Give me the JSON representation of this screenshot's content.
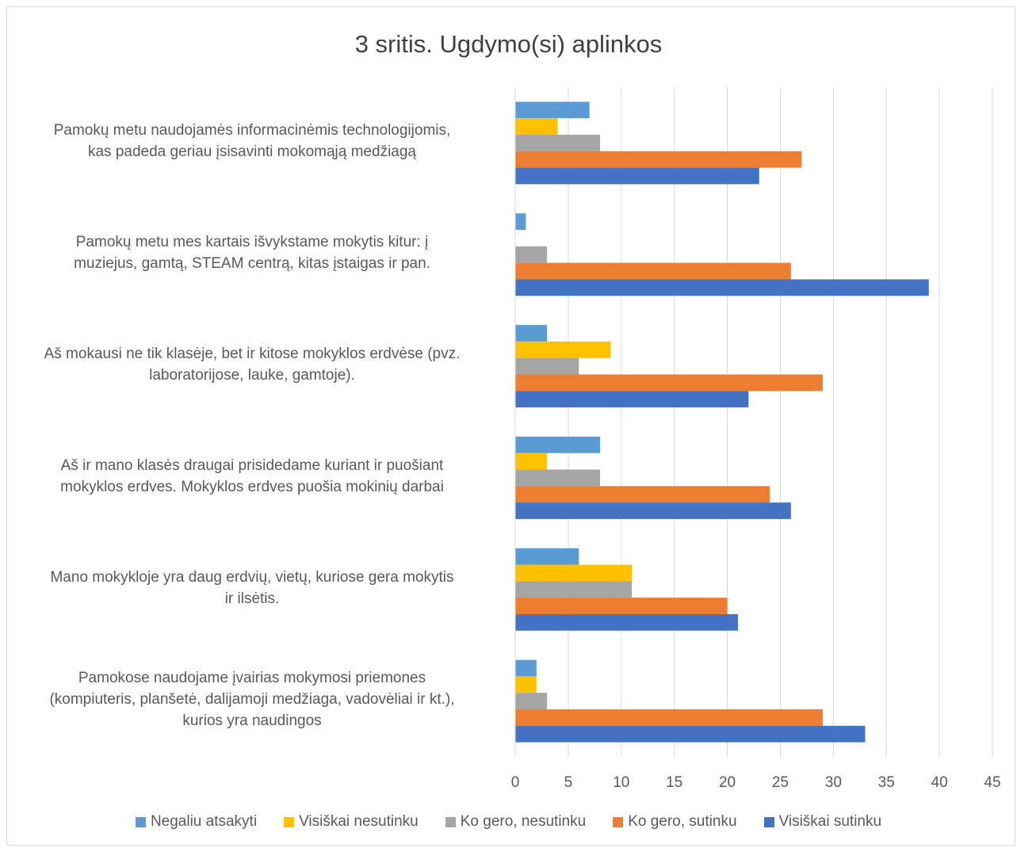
{
  "chart_data": {
    "type": "bar",
    "orientation": "horizontal",
    "title": "3 sritis. Ugdymo(si) aplinkos",
    "xlabel": "",
    "ylabel": "",
    "xlim": [
      0,
      45
    ],
    "x_ticks": [
      "0",
      "5",
      "10",
      "15",
      "20",
      "25",
      "30",
      "35",
      "40",
      "45"
    ],
    "grid": true,
    "legend_position": "bottom",
    "categories": [
      "Pamokų metu naudojamės informacinėmis technologijomis, kas padeda geriau įsisavinti mokomąją medžiagą",
      "Pamokų metu mes kartais išvykstame mokytis kitur: į muziejus, gamtą, STEAM centrą, kitas įstaigas ir pan.",
      "Aš mokausi ne tik klasėje, bet ir kitose mokyklos erdvėse (pvz. laboratorijose, lauke, gamtoje).",
      "Aš ir mano klasės draugai prisidedame kuriant ir puošiant mokyklos erdves. Mokyklos erdves puošia mokinių darbai",
      "Mano mokykloje yra daug erdvių, vietų, kuriose gera mokytis ir ilsėtis.",
      "Pamokose naudojame įvairias mokymosi priemones (kompiuteris, planšetė, dalijamoji medžiaga, vadovėliai ir kt.), kurios yra naudingos"
    ],
    "series": [
      {
        "name": "Negaliu atsakyti",
        "color": "#5B9BD5",
        "values": [
          7,
          1,
          3,
          8,
          6,
          2
        ]
      },
      {
        "name": "Visiškai nesutinku",
        "color": "#FFC000",
        "values": [
          4,
          0,
          9,
          3,
          11,
          2
        ]
      },
      {
        "name": "Ko gero, nesutinku",
        "color": "#A5A5A5",
        "values": [
          8,
          3,
          6,
          8,
          11,
          3
        ]
      },
      {
        "name": "Ko gero, sutinku",
        "color": "#ED7D31",
        "values": [
          27,
          26,
          29,
          24,
          20,
          29
        ]
      },
      {
        "name": "Visiškai sutinku",
        "color": "#4472C4",
        "values": [
          23,
          39,
          22,
          26,
          21,
          33
        ]
      }
    ]
  },
  "category_label_lines": [
    [
      "Pamokų metu naudojamės informacinėmis technologijomis,",
      "kas padeda geriau įsisavinti mokomąją medžiagą"
    ],
    [
      "Pamokų metu mes kartais išvykstame mokytis kitur: į",
      "muziejus, gamtą, STEAM centrą, kitas įstaigas ir pan."
    ],
    [
      "Aš mokausi ne tik klasėje, bet ir kitose mokyklos erdvėse (pvz.",
      "laboratorijose, lauke, gamtoje)."
    ],
    [
      "Aš ir mano klasės draugai prisidedame kuriant ir puošiant",
      "mokyklos erdves. Mokyklos erdves puošia mokinių darbai"
    ],
    [
      "Mano mokykloje yra daug erdvių, vietų, kuriose gera mokytis",
      "ir ilsėtis."
    ],
    [
      "Pamokose naudojame įvairias mokymosi priemones",
      "(kompiuteris, planšetė, dalijamoji medžiaga, vadovėliai ir kt.),",
      "kurios yra naudingos"
    ]
  ]
}
